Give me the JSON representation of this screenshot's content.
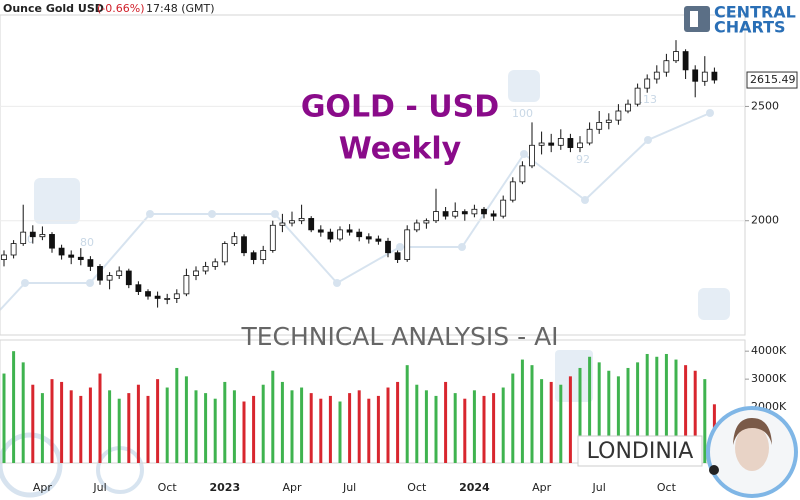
{
  "header": {
    "title": "Ounce Gold USD",
    "change": "(-0.66%)",
    "time": "17:48 (GMT)"
  },
  "logo": {
    "line1": "CENTRAL",
    "line2": "CHARTS"
  },
  "watermark": {
    "title": "GOLD - USD",
    "subtitle": "Weekly",
    "banner": "TECHNICAL  ANALYSIS - AI",
    "brand": "LONDINIA",
    "numbers": [
      "80",
      "80",
      "100",
      "92",
      "113"
    ]
  },
  "chart_data": [
    {
      "type": "candlestick",
      "last_value": 2615.49,
      "last_label": "2615.49",
      "categories": [
        null,
        null,
        null,
        null,
        "Apr",
        null,
        null,
        null,
        null,
        null,
        "Jul",
        null,
        null,
        null,
        null,
        null,
        null,
        "Oct",
        null,
        null,
        null,
        null,
        null,
        "2023",
        null,
        null,
        null,
        null,
        null,
        null,
        "Apr",
        null,
        null,
        null,
        null,
        null,
        "Jul",
        null,
        null,
        null,
        null,
        null,
        null,
        "Oct",
        null,
        null,
        null,
        null,
        null,
        "2024",
        null,
        null,
        null,
        null,
        null,
        null,
        "Apr",
        null,
        null,
        null,
        null,
        null,
        "Jul",
        null,
        null,
        null,
        null,
        null,
        null,
        "Oct",
        null,
        null,
        null,
        null,
        null
      ],
      "open": [
        1830,
        1850,
        1900,
        1950,
        1930,
        1940,
        1880,
        1850,
        1840,
        1830,
        1800,
        1740,
        1760,
        1780,
        1720,
        1690,
        1670,
        1660,
        1660,
        1680,
        1760,
        1780,
        1800,
        1820,
        1900,
        1930,
        1860,
        1830,
        1870,
        1980,
        1990,
        2000,
        2010,
        1960,
        1950,
        1920,
        1960,
        1950,
        1930,
        1920,
        1910,
        1860,
        1830,
        1960,
        1990,
        2000,
        2040,
        2020,
        2040,
        2030,
        2050,
        2030,
        2020,
        2090,
        2170,
        2240,
        2330,
        2340,
        2330,
        2360,
        2320,
        2340,
        2400,
        2430,
        2440,
        2480,
        2510,
        2580,
        2620,
        2650,
        2700,
        2740,
        2660,
        2610,
        2650
      ],
      "high": [
        1870,
        1915,
        2070,
        1980,
        1975,
        1950,
        1895,
        1870,
        1880,
        1845,
        1810,
        1775,
        1800,
        1790,
        1735,
        1700,
        1690,
        1680,
        1700,
        1790,
        1800,
        1820,
        1835,
        1910,
        1950,
        1940,
        1870,
        1890,
        2000,
        2030,
        2040,
        2070,
        2020,
        1980,
        1965,
        1975,
        1985,
        1965,
        1945,
        1935,
        1925,
        1870,
        1980,
        2005,
        2010,
        2140,
        2060,
        2080,
        2050,
        2070,
        2060,
        2045,
        2110,
        2190,
        2260,
        2430,
        2390,
        2380,
        2400,
        2380,
        2370,
        2430,
        2480,
        2470,
        2510,
        2530,
        2600,
        2640,
        2680,
        2730,
        2790,
        2750,
        2680,
        2720,
        2670
      ],
      "low": [
        1800,
        1835,
        1890,
        1900,
        1915,
        1860,
        1830,
        1810,
        1805,
        1780,
        1720,
        1700,
        1745,
        1705,
        1675,
        1655,
        1620,
        1635,
        1640,
        1670,
        1740,
        1765,
        1785,
        1805,
        1890,
        1845,
        1810,
        1810,
        1860,
        1950,
        1975,
        1985,
        1950,
        1930,
        1905,
        1910,
        1935,
        1910,
        1900,
        1895,
        1840,
        1815,
        1820,
        1950,
        1965,
        1990,
        2005,
        2010,
        2000,
        2015,
        2010,
        2000,
        2010,
        2080,
        2160,
        2230,
        2290,
        2300,
        2310,
        2300,
        2300,
        2330,
        2380,
        2400,
        2420,
        2470,
        2500,
        2560,
        2600,
        2630,
        2690,
        2620,
        2540,
        2590,
        2600
      ],
      "close": [
        1850,
        1900,
        1950,
        1930,
        1940,
        1880,
        1850,
        1840,
        1830,
        1800,
        1740,
        1760,
        1780,
        1720,
        1690,
        1670,
        1660,
        1660,
        1680,
        1760,
        1780,
        1800,
        1820,
        1900,
        1930,
        1860,
        1830,
        1870,
        1980,
        1990,
        2000,
        2010,
        1960,
        1950,
        1920,
        1960,
        1950,
        1930,
        1920,
        1910,
        1860,
        1830,
        1960,
        1990,
        2000,
        2040,
        2020,
        2040,
        2030,
        2050,
        2030,
        2020,
        2090,
        2170,
        2240,
        2330,
        2340,
        2330,
        2360,
        2320,
        2340,
        2400,
        2430,
        2440,
        2480,
        2510,
        2580,
        2620,
        2650,
        2700,
        2740,
        2660,
        2610,
        2650,
        2615.49
      ],
      "up_color": "#ffffff",
      "down_color": "#111111",
      "ylim": [
        1500,
        2900
      ],
      "yticks": [
        2000,
        2500
      ],
      "grid": true
    },
    {
      "type": "bar",
      "values": [
        3200,
        4000,
        3600,
        2800,
        2500,
        3000,
        2900,
        2600,
        2400,
        2700,
        3200,
        2600,
        2300,
        2500,
        2800,
        2400,
        3000,
        2700,
        3400,
        3100,
        2600,
        2500,
        2300,
        2900,
        2600,
        2200,
        2400,
        2800,
        3300,
        2900,
        2600,
        2700,
        2500,
        2300,
        2400,
        2200,
        2500,
        2600,
        2300,
        2400,
        2700,
        2900,
        3500,
        2800,
        2600,
        2400,
        2900,
        2500,
        2300,
        2600,
        2400,
        2500,
        2700,
        3200,
        3700,
        3500,
        3000,
        2900,
        2800,
        3100,
        3400,
        3800,
        3600,
        3300,
        3100,
        3400,
        3600,
        3900,
        3800,
        3900,
        3700,
        3500,
        3300,
        3000,
        2100
      ],
      "up_color": "#3fb34f",
      "down_color": "#d8262e",
      "ylim": [
        0,
        4400
      ],
      "yticks": [
        {
          "value": 2000,
          "label": "2000K"
        },
        {
          "value": 3000,
          "label": "3000K"
        },
        {
          "value": 4000,
          "label": "4000K"
        }
      ]
    }
  ]
}
